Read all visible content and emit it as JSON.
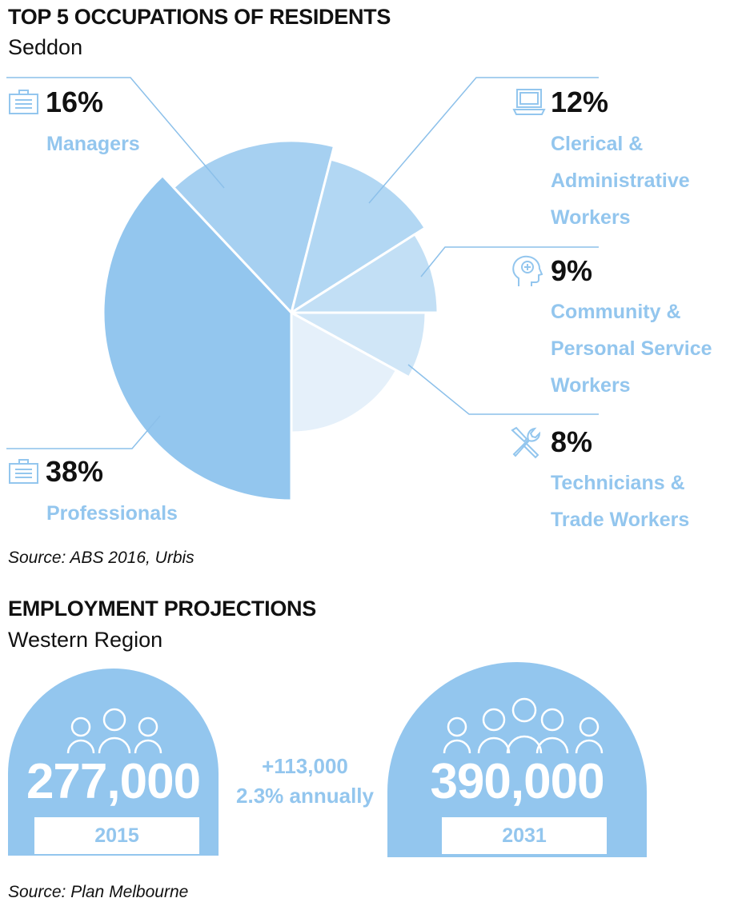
{
  "section1": {
    "title": "TOP 5 OCCUPATIONS OF RESIDENTS",
    "subtitle": "Seddon",
    "source": "Source: ABS 2016, Urbis"
  },
  "chart_data": {
    "type": "pie",
    "title": "TOP 5 OCCUPATIONS OF RESIDENTS",
    "subtitle": "Seddon",
    "slices": [
      {
        "label": "Professionals",
        "value": 38,
        "color": "#93c6ee",
        "icon": "briefcase-icon"
      },
      {
        "label": "Managers",
        "value": 16,
        "color": "#a6d0f1",
        "icon": "briefcase-icon"
      },
      {
        "label": "Clerical & Administrative Workers",
        "value": 12,
        "color": "#b2d7f3",
        "icon": "computer-icon"
      },
      {
        "label": "Community & Personal Service Workers",
        "value": 9,
        "color": "#c2dff5",
        "icon": "head-medical-icon"
      },
      {
        "label": "Technicians & Trade Workers",
        "value": 8,
        "color": "#d0e6f7",
        "icon": "tools-icon"
      },
      {
        "label": "",
        "value": 17,
        "color": "#e5f0fa"
      }
    ]
  },
  "legend": {
    "managers": {
      "pct": "16%",
      "label": "Managers"
    },
    "clerical": {
      "pct": "12%",
      "line1": "Clerical &",
      "line2": "Administrative",
      "line3": "Workers"
    },
    "community": {
      "pct": "9%",
      "line1": "Community &",
      "line2": "Personal Service",
      "line3": "Workers"
    },
    "technicians": {
      "pct": "8%",
      "line1": "Technicians &",
      "line2": "Trade Workers"
    },
    "professionals": {
      "pct": "38%",
      "label": "Professionals"
    }
  },
  "section2": {
    "title": "EMPLOYMENT PROJECTIONS",
    "subtitle": "Western Region",
    "left": {
      "value": "277,000",
      "year": "2015"
    },
    "middle": {
      "line1": "+113,000",
      "line2": "2.3% annually"
    },
    "right": {
      "value": "390,000",
      "year": "2031"
    },
    "source": "Source: Plan Melbourne"
  },
  "colors": {
    "accent": "#93c6ee",
    "line": "#8cc0ea"
  }
}
